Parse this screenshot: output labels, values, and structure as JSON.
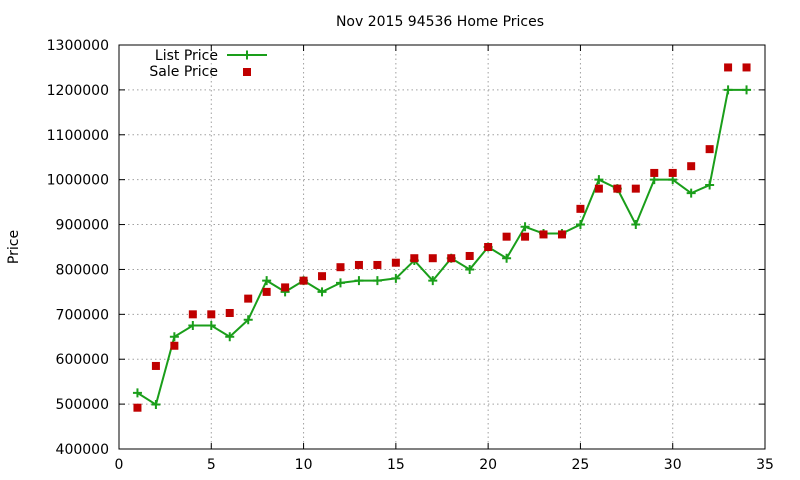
{
  "chart_data": {
    "type": "line",
    "title": "Nov 2015 94536 Home Prices",
    "xlabel": "",
    "ylabel": "Price",
    "xlim": [
      0,
      35
    ],
    "ylim": [
      400000,
      1300000
    ],
    "x_ticks": [
      0,
      5,
      10,
      15,
      20,
      25,
      30,
      35
    ],
    "y_ticks": [
      400000,
      500000,
      600000,
      700000,
      800000,
      900000,
      1000000,
      1100000,
      1200000,
      1300000
    ],
    "grid": true,
    "legend_position": "top-left",
    "series": [
      {
        "name": "List Price",
        "style": "linespoints",
        "marker": "plus",
        "color": "#1a9e1a",
        "x": [
          1,
          2,
          3,
          4,
          5,
          6,
          7,
          8,
          9,
          10,
          11,
          12,
          13,
          14,
          15,
          16,
          17,
          18,
          19,
          20,
          21,
          22,
          23,
          24,
          25,
          26,
          27,
          28,
          29,
          30,
          31,
          32,
          33,
          34
        ],
        "y": [
          525000,
          499000,
          650000,
          675000,
          675000,
          650000,
          688000,
          775000,
          750000,
          775000,
          750000,
          770000,
          775000,
          775000,
          780000,
          820000,
          775000,
          825000,
          800000,
          850000,
          825000,
          895000,
          880000,
          880000,
          900000,
          1000000,
          980000,
          900000,
          1000000,
          1000000,
          970000,
          988000,
          1200000,
          1200000
        ]
      },
      {
        "name": "Sale Price",
        "style": "points",
        "marker": "square",
        "color": "#c00000",
        "x": [
          1,
          2,
          3,
          4,
          5,
          6,
          7,
          8,
          9,
          10,
          11,
          12,
          13,
          14,
          15,
          16,
          17,
          18,
          19,
          20,
          21,
          22,
          23,
          24,
          25,
          26,
          27,
          28,
          29,
          30,
          31,
          32,
          33,
          34
        ],
        "y": [
          492000,
          585000,
          630000,
          700000,
          700000,
          703000,
          735000,
          750000,
          760000,
          775000,
          785000,
          805000,
          810000,
          810000,
          815000,
          825000,
          825000,
          825000,
          830000,
          850000,
          873000,
          873000,
          878000,
          878000,
          935000,
          980000,
          980000,
          980000,
          1015000,
          1015000,
          1030000,
          1068000,
          1250000,
          1250000
        ]
      }
    ]
  }
}
